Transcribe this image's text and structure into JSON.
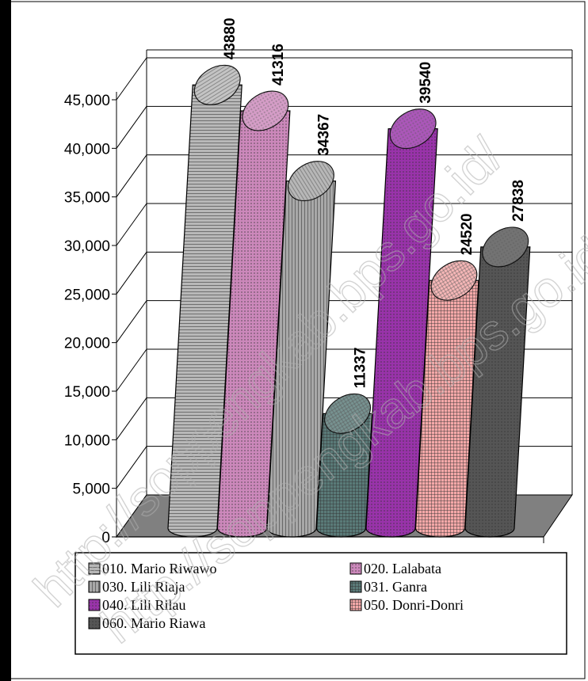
{
  "chart_data": {
    "type": "bar",
    "style": "3d-cylinder",
    "categories": [
      "010. Mario Riwawo",
      "020. Lalabata",
      "030. Lili Riaja",
      "031. Ganra",
      "040. Lili Rilau",
      "050. Donri-Donri",
      "060. Mario Riawa"
    ],
    "values": [
      43880,
      41316,
      34367,
      11337,
      39540,
      24520,
      27838
    ],
    "data_labels": [
      "43880",
      "41316",
      "34367",
      "11337",
      "39540",
      "24520",
      "27838"
    ],
    "yticks": [
      "0",
      "5,000",
      "10,000",
      "15,000",
      "20,000",
      "25,000",
      "30,000",
      "35,000",
      "40,000",
      "45,000"
    ],
    "ylim": [
      0,
      45000
    ],
    "grid": true,
    "legend_position": "bottom",
    "legend": [
      {
        "label": "010. Mario Riwawo",
        "color": "#b8b8b8",
        "pattern": "hlines"
      },
      {
        "label": "020. Lalabata",
        "color": "#cc88bb",
        "pattern": "dots"
      },
      {
        "label": "030. Lili Riaja",
        "color": "#a8a8a8",
        "pattern": "vlines"
      },
      {
        "label": "031. Ganra",
        "color": "#5a7a78",
        "pattern": "grid"
      },
      {
        "label": "040. Lili Rilau",
        "color": "#9933aa",
        "pattern": "dots"
      },
      {
        "label": "050. Donri-Donri",
        "color": "#f4a8a8",
        "pattern": "grid"
      },
      {
        "label": "060. Mario Riawa",
        "color": "#555555",
        "pattern": "dots"
      }
    ],
    "floor_color": "#808080"
  },
  "watermark": "http://soppengkab.bps.go.id/"
}
